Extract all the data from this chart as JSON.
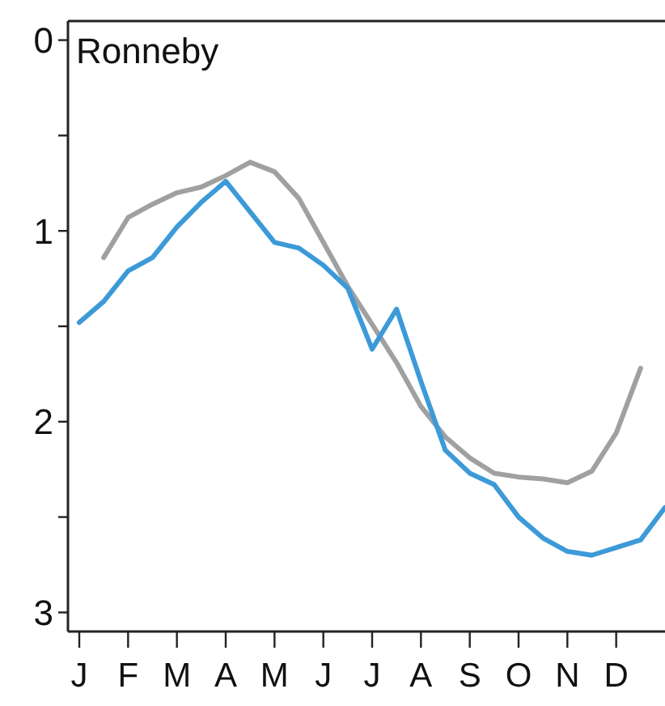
{
  "chart_data": {
    "type": "line",
    "title": "Ronneby",
    "categories": [
      "J",
      null,
      "F",
      null,
      "M",
      null,
      "A",
      null,
      "M",
      null,
      "J",
      null,
      "J",
      null,
      "A",
      null,
      "S",
      null,
      "O",
      null,
      "N",
      null,
      "D",
      null,
      null
    ],
    "ylim": [
      3.1,
      -0.1
    ],
    "yticks": [
      0,
      {
        "value": 0.5,
        "label": null
      },
      1,
      {
        "value": 1.5,
        "label": null
      },
      2,
      {
        "value": 2.5,
        "label": null
      },
      3
    ],
    "grid": false,
    "marker": "none",
    "line_style": "solid",
    "series": [
      {
        "color": "#a0a0a0",
        "values": [
          null,
          1.14,
          0.93,
          0.86,
          0.8,
          0.77,
          0.71,
          0.64,
          0.69,
          0.83,
          1.06,
          1.29,
          1.49,
          1.69,
          1.92,
          2.08,
          2.19,
          2.27,
          2.29,
          2.3,
          2.32,
          2.26,
          2.06,
          1.72,
          null
        ]
      },
      {
        "color": "#3d9ad8",
        "values": [
          1.48,
          1.37,
          1.21,
          1.14,
          0.98,
          0.85,
          0.74,
          0.9,
          1.06,
          1.09,
          1.18,
          1.3,
          1.62,
          1.41,
          1.79,
          2.15,
          2.27,
          2.33,
          2.5,
          2.61,
          2.68,
          2.7,
          2.66,
          2.62,
          2.45
        ]
      }
    ]
  }
}
